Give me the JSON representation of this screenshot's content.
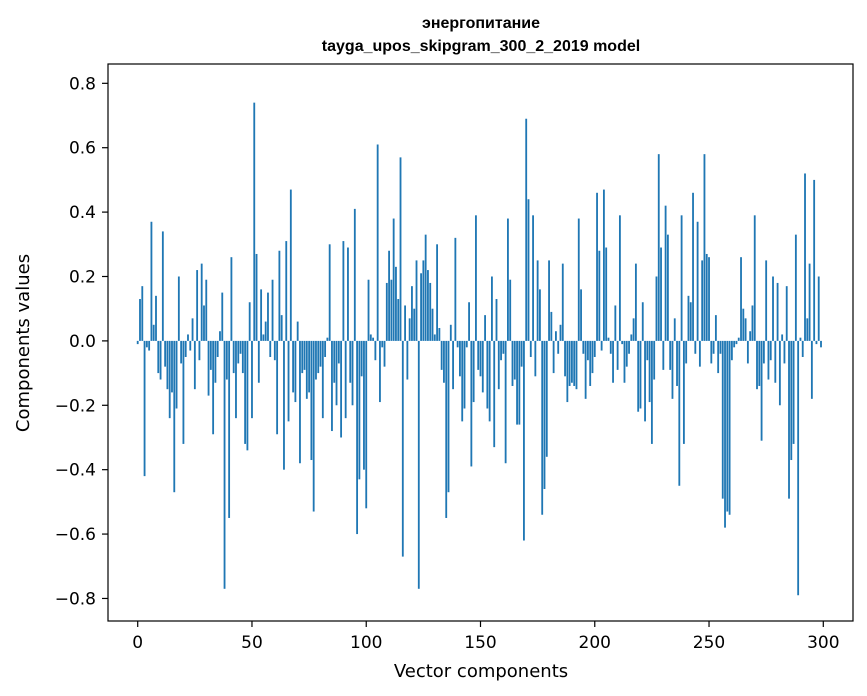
{
  "chart_data": {
    "type": "bar",
    "title_line1": "энергопитание",
    "title_line2": "tayga_upos_skipgram_300_2_2019 model",
    "xlabel": "Vector components",
    "ylabel": "Components values",
    "xlim": [
      -13,
      313
    ],
    "ylim": [
      -0.87,
      0.86
    ],
    "xticks": [
      0,
      50,
      100,
      150,
      200,
      250,
      300
    ],
    "xtick_labels": [
      "0",
      "50",
      "100",
      "150",
      "200",
      "250",
      "300"
    ],
    "yticks": [
      0.8,
      0.6,
      0.4,
      0.2,
      0.0,
      -0.2,
      -0.4,
      -0.6,
      -0.8
    ],
    "ytick_labels": [
      "0.8",
      "0.6",
      "0.4",
      "0.2",
      "0.0",
      "−0.2",
      "−0.4",
      "−0.6",
      "−0.8"
    ],
    "bar_color": "#1f77b4",
    "grid": false,
    "values": [
      -0.01,
      0.13,
      0.17,
      -0.42,
      -0.02,
      -0.03,
      0.37,
      0.05,
      0.14,
      -0.1,
      -0.12,
      0.34,
      -0.08,
      -0.15,
      -0.24,
      -0.16,
      -0.47,
      -0.21,
      0.2,
      -0.07,
      -0.32,
      -0.05,
      0.02,
      -0.03,
      0.07,
      -0.15,
      0.22,
      -0.06,
      0.24,
      0.11,
      0.19,
      -0.17,
      -0.09,
      -0.29,
      -0.13,
      -0.05,
      0.03,
      0.15,
      -0.77,
      -0.12,
      -0.55,
      0.26,
      -0.1,
      -0.24,
      -0.07,
      -0.04,
      -0.1,
      -0.32,
      -0.34,
      0.12,
      -0.24,
      0.74,
      0.27,
      -0.13,
      0.16,
      0.02,
      0.06,
      0.15,
      -0.05,
      0.19,
      -0.06,
      -0.29,
      0.28,
      0.08,
      -0.4,
      0.31,
      -0.25,
      0.47,
      -0.16,
      -0.19,
      0.06,
      -0.38,
      -0.1,
      -0.09,
      -0.18,
      -0.16,
      -0.37,
      -0.53,
      -0.12,
      -0.1,
      -0.08,
      -0.24,
      -0.05,
      0.01,
      0.3,
      -0.28,
      -0.13,
      -0.2,
      -0.07,
      -0.3,
      0.31,
      -0.24,
      0.29,
      -0.13,
      -0.2,
      0.41,
      -0.6,
      -0.43,
      -0.11,
      -0.4,
      -0.52,
      0.19,
      0.02,
      0.01,
      -0.06,
      0.61,
      -0.19,
      -0.02,
      -0.08,
      0.18,
      0.28,
      0.19,
      0.38,
      0.23,
      0.13,
      0.57,
      -0.67,
      0.11,
      -0.12,
      0.07,
      0.17,
      0.1,
      0.25,
      -0.77,
      0.21,
      0.25,
      0.33,
      0.22,
      0.18,
      0.1,
      0.02,
      0.3,
      0.04,
      -0.09,
      -0.13,
      -0.55,
      -0.47,
      0.05,
      -0.15,
      0.32,
      -0.02,
      -0.11,
      -0.25,
      -0.21,
      -0.02,
      0.12,
      -0.39,
      -0.19,
      0.39,
      -0.09,
      -0.11,
      -0.16,
      0.08,
      -0.21,
      -0.25,
      0.2,
      -0.33,
      0.13,
      -0.15,
      -0.06,
      -0.04,
      -0.38,
      0.38,
      0.19,
      -0.14,
      -0.12,
      -0.26,
      -0.26,
      -0.08,
      -0.62,
      0.69,
      0.44,
      -0.05,
      0.39,
      -0.11,
      0.25,
      0.16,
      -0.54,
      -0.46,
      -0.36,
      0.25,
      0.09,
      -0.1,
      0.03,
      -0.04,
      0.05,
      0.24,
      -0.11,
      -0.19,
      -0.14,
      -0.13,
      -0.14,
      -0.15,
      0.38,
      0.16,
      -0.04,
      -0.18,
      -0.06,
      -0.14,
      -0.1,
      -0.05,
      0.46,
      0.28,
      -0.03,
      0.47,
      0.29,
      0.01,
      -0.04,
      -0.13,
      0.11,
      -0.09,
      0.39,
      -0.01,
      -0.13,
      -0.08,
      -0.04,
      0.02,
      0.07,
      0.24,
      -0.22,
      -0.21,
      0.12,
      -0.25,
      -0.06,
      -0.19,
      -0.32,
      -0.12,
      0.2,
      0.58,
      0.29,
      -0.09,
      0.42,
      0.33,
      -0.09,
      -0.18,
      0.07,
      -0.14,
      -0.45,
      0.39,
      -0.32,
      -0.07,
      0.14,
      0.12,
      0.46,
      -0.04,
      0.37,
      -0.08,
      0.25,
      0.58,
      0.27,
      0.26,
      -0.07,
      -0.04,
      0.08,
      -0.1,
      -0.04,
      -0.49,
      -0.58,
      -0.53,
      -0.54,
      -0.06,
      -0.02,
      -0.01,
      0.01,
      0.26,
      0.1,
      0.07,
      -0.07,
      0.03,
      0.11,
      0.39,
      -0.15,
      -0.14,
      -0.31,
      -0.07,
      0.25,
      -0.12,
      -0.06,
      0.2,
      -0.13,
      0.18,
      -0.2,
      0.02,
      -0.07,
      0.17,
      -0.49,
      -0.37,
      -0.32,
      0.33,
      -0.79,
      0.01,
      -0.05,
      0.52,
      0.07,
      0.24,
      -0.18,
      0.5,
      -0.01,
      0.2,
      -0.02
    ]
  }
}
